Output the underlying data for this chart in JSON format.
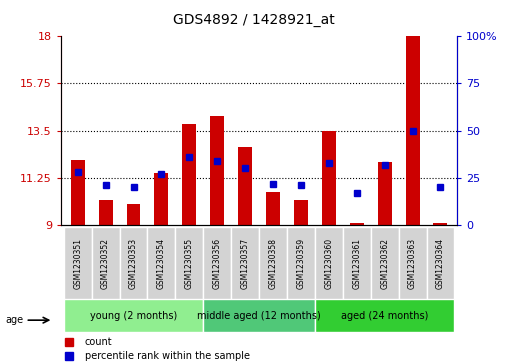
{
  "title": "GDS4892 / 1428921_at",
  "samples": [
    "GSM1230351",
    "GSM1230352",
    "GSM1230353",
    "GSM1230354",
    "GSM1230355",
    "GSM1230356",
    "GSM1230357",
    "GSM1230358",
    "GSM1230359",
    "GSM1230360",
    "GSM1230361",
    "GSM1230362",
    "GSM1230363",
    "GSM1230364"
  ],
  "count_values": [
    12.1,
    10.2,
    10.0,
    11.5,
    13.8,
    14.2,
    12.7,
    10.6,
    10.2,
    13.5,
    9.1,
    12.0,
    18.0,
    9.1
  ],
  "percentile_values": [
    28,
    21,
    20,
    27,
    36,
    34,
    30,
    22,
    21,
    33,
    17,
    32,
    50,
    20
  ],
  "y_min": 9,
  "y_max": 18,
  "y_ticks": [
    9,
    11.25,
    13.5,
    15.75,
    18
  ],
  "y2_ticks": [
    0,
    25,
    50,
    75,
    100
  ],
  "y2_ticklabels": [
    "0",
    "25",
    "50",
    "75",
    "100%"
  ],
  "groups": [
    {
      "label": "young (2 months)",
      "start": 0,
      "end": 5,
      "color": "#90EE90"
    },
    {
      "label": "middle aged (12 months)",
      "start": 5,
      "end": 9,
      "color": "#50C878"
    },
    {
      "label": "aged (24 months)",
      "start": 9,
      "end": 14,
      "color": "#32CD32"
    }
  ],
  "bar_color": "#CC0000",
  "dot_color": "#0000CC",
  "axis_label_color_left": "#CC0000",
  "axis_label_color_right": "#0000CC",
  "bar_width": 0.5,
  "age_label": "age",
  "legend_count": "count",
  "legend_percentile": "percentile rank within the sample",
  "group_colors": [
    "#90EE90",
    "#50C878",
    "#32CD32"
  ]
}
